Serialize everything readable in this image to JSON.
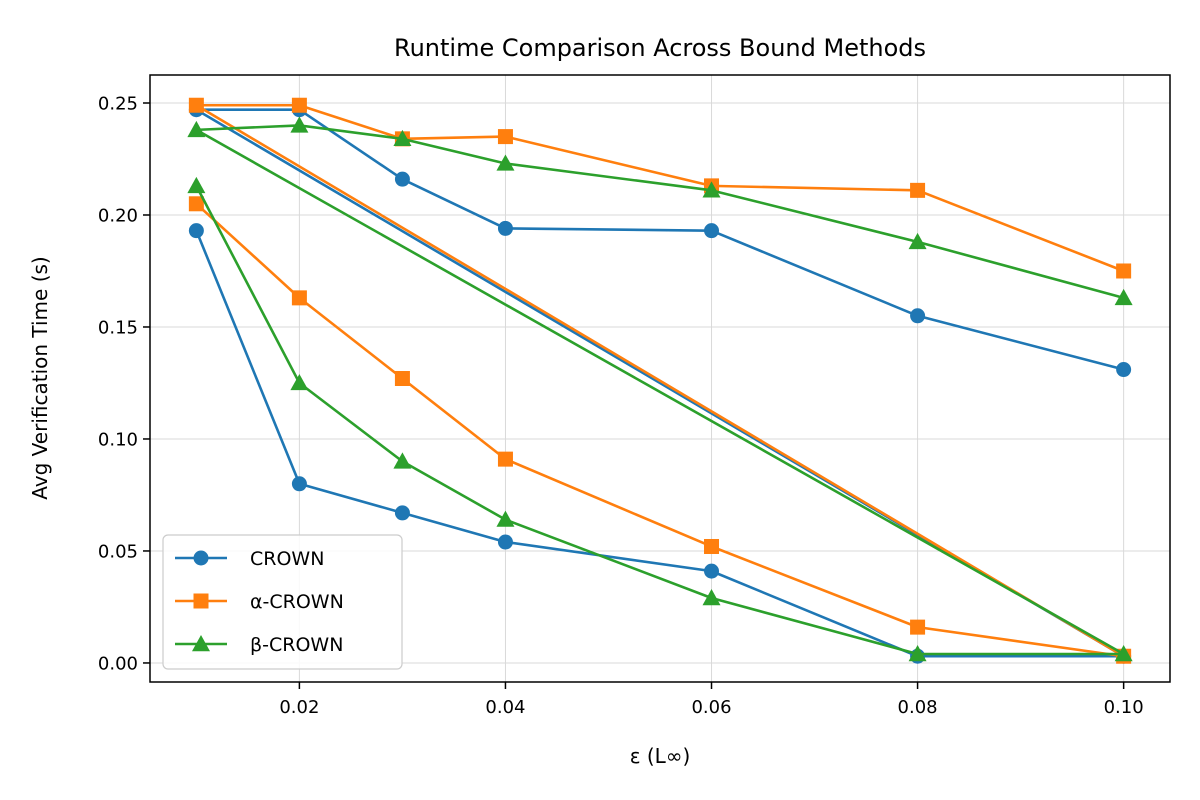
{
  "chart_data": {
    "type": "line",
    "title": "Runtime Comparison Across Bound Methods",
    "xlabel": "ε (L∞)",
    "ylabel": "Avg Verification Time (s)",
    "xlim": [
      0.0055,
      0.1045
    ],
    "ylim": [
      -0.0085,
      0.2625
    ],
    "xticks": [
      0.02,
      0.04,
      0.06,
      0.08,
      0.1
    ],
    "xtick_labels": [
      "0.02",
      "0.04",
      "0.06",
      "0.08",
      "0.10"
    ],
    "yticks": [
      0.0,
      0.05,
      0.1,
      0.15,
      0.2,
      0.25
    ],
    "ytick_labels": [
      "0.00",
      "0.05",
      "0.10",
      "0.15",
      "0.20",
      "0.25"
    ],
    "grid": true,
    "legend_position": "lower-left",
    "series": [
      {
        "name": "CROWN",
        "color": "#1f77b4",
        "marker": "circle",
        "points": [
          [
            0.01,
            0.193
          ],
          [
            0.02,
            0.08
          ],
          [
            0.03,
            0.067
          ],
          [
            0.04,
            0.054
          ],
          [
            0.06,
            0.041
          ],
          [
            0.08,
            0.003
          ],
          [
            0.1,
            0.003
          ],
          [
            0.01,
            0.247
          ],
          [
            0.02,
            0.247
          ],
          [
            0.03,
            0.216
          ],
          [
            0.04,
            0.194
          ],
          [
            0.06,
            0.193
          ],
          [
            0.08,
            0.155
          ],
          [
            0.1,
            0.131
          ]
        ]
      },
      {
        "name": "α-CROWN",
        "color": "#ff7f0e",
        "marker": "square",
        "points": [
          [
            0.01,
            0.205
          ],
          [
            0.02,
            0.163
          ],
          [
            0.03,
            0.127
          ],
          [
            0.04,
            0.091
          ],
          [
            0.06,
            0.052
          ],
          [
            0.08,
            0.016
          ],
          [
            0.1,
            0.003
          ],
          [
            0.01,
            0.249
          ],
          [
            0.02,
            0.249
          ],
          [
            0.03,
            0.234
          ],
          [
            0.04,
            0.235
          ],
          [
            0.06,
            0.213
          ],
          [
            0.08,
            0.211
          ],
          [
            0.1,
            0.175
          ]
        ]
      },
      {
        "name": "β-CROWN",
        "color": "#2ca02c",
        "marker": "triangle",
        "points": [
          [
            0.01,
            0.213
          ],
          [
            0.02,
            0.125
          ],
          [
            0.03,
            0.09
          ],
          [
            0.04,
            0.064
          ],
          [
            0.06,
            0.029
          ],
          [
            0.08,
            0.004
          ],
          [
            0.1,
            0.004
          ],
          [
            0.01,
            0.238
          ],
          [
            0.02,
            0.24
          ],
          [
            0.03,
            0.234
          ],
          [
            0.04,
            0.223
          ],
          [
            0.06,
            0.211
          ],
          [
            0.08,
            0.188
          ],
          [
            0.1,
            0.163
          ]
        ]
      }
    ]
  }
}
